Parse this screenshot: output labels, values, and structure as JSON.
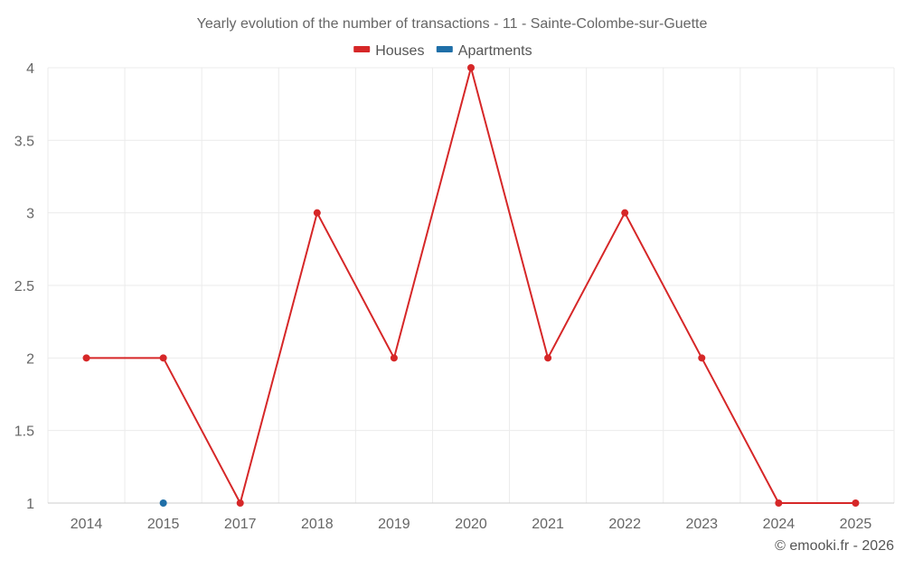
{
  "chart_data": {
    "type": "line",
    "title": "Yearly evolution of the number of transactions - 11 - Sainte-Colombe-sur-Guette",
    "categories": [
      "2014",
      "2015",
      "2017",
      "2018",
      "2019",
      "2020",
      "2021",
      "2022",
      "2023",
      "2024",
      "2025"
    ],
    "series": [
      {
        "name": "Houses",
        "color": "#d62728",
        "values": [
          2,
          2,
          1,
          3,
          2,
          4,
          2,
          3,
          2,
          1,
          1
        ]
      },
      {
        "name": "Apartments",
        "color": "#1f6fa8",
        "values": [
          null,
          1,
          null,
          null,
          null,
          null,
          null,
          null,
          null,
          null,
          null
        ]
      }
    ],
    "ylim": [
      1,
      4
    ],
    "yticks": [
      "1",
      "1.5",
      "2",
      "2.5",
      "3",
      "3.5",
      "4"
    ],
    "xlabel": "",
    "ylabel": "",
    "grid": true,
    "legend_position": "top-center"
  },
  "credit": "© emooki.fr - 2026"
}
